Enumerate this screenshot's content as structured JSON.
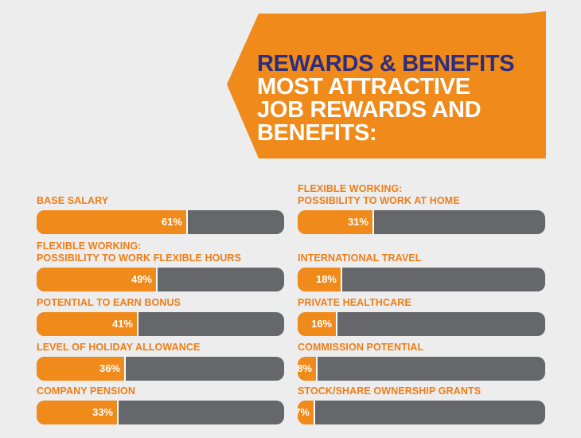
{
  "header": {
    "title": "REWARDS & BENEFITS",
    "subtitle_lines": [
      "MOST ATTRACTIVE",
      "JOB REWARDS AND",
      "BENEFITS:"
    ]
  },
  "colors": {
    "orange": "#f08a1a",
    "gray": "#66676b",
    "navy": "#2b2d7e",
    "background": "#ededed"
  },
  "chart_data": {
    "type": "bar",
    "orientation": "horizontal",
    "ylim": [
      0,
      100
    ],
    "left_column": [
      {
        "label_lines": [
          "BASE SALARY"
        ],
        "value": 61,
        "value_label": "61%"
      },
      {
        "label_lines": [
          "FLEXIBLE WORKING:",
          "POSSIBILITY TO WORK FLEXIBLE HOURS"
        ],
        "value": 49,
        "value_label": "49%"
      },
      {
        "label_lines": [
          "POTENTIAL TO EARN BONUS"
        ],
        "value": 41,
        "value_label": "41%"
      },
      {
        "label_lines": [
          "LEVEL OF HOLIDAY ALLOWANCE"
        ],
        "value": 36,
        "value_label": "36%"
      },
      {
        "label_lines": [
          "COMPANY PENSION"
        ],
        "value": 33,
        "value_label": "33%"
      }
    ],
    "right_column": [
      {
        "label_lines": [
          "FLEXIBLE WORKING:",
          "POSSIBILITY TO WORK AT HOME"
        ],
        "value": 31,
        "value_label": "31%"
      },
      {
        "label_lines": [
          "INTERNATIONAL TRAVEL"
        ],
        "value": 18,
        "value_label": "18%"
      },
      {
        "label_lines": [
          "PRIVATE HEALTHCARE"
        ],
        "value": 16,
        "value_label": "16%"
      },
      {
        "label_lines": [
          "COMMISSION POTENTIAL"
        ],
        "value": 8,
        "value_label": "8%"
      },
      {
        "label_lines": [
          "STOCK/SHARE OWNERSHIP GRANTS"
        ],
        "value": 7,
        "value_label": "7%"
      }
    ]
  }
}
